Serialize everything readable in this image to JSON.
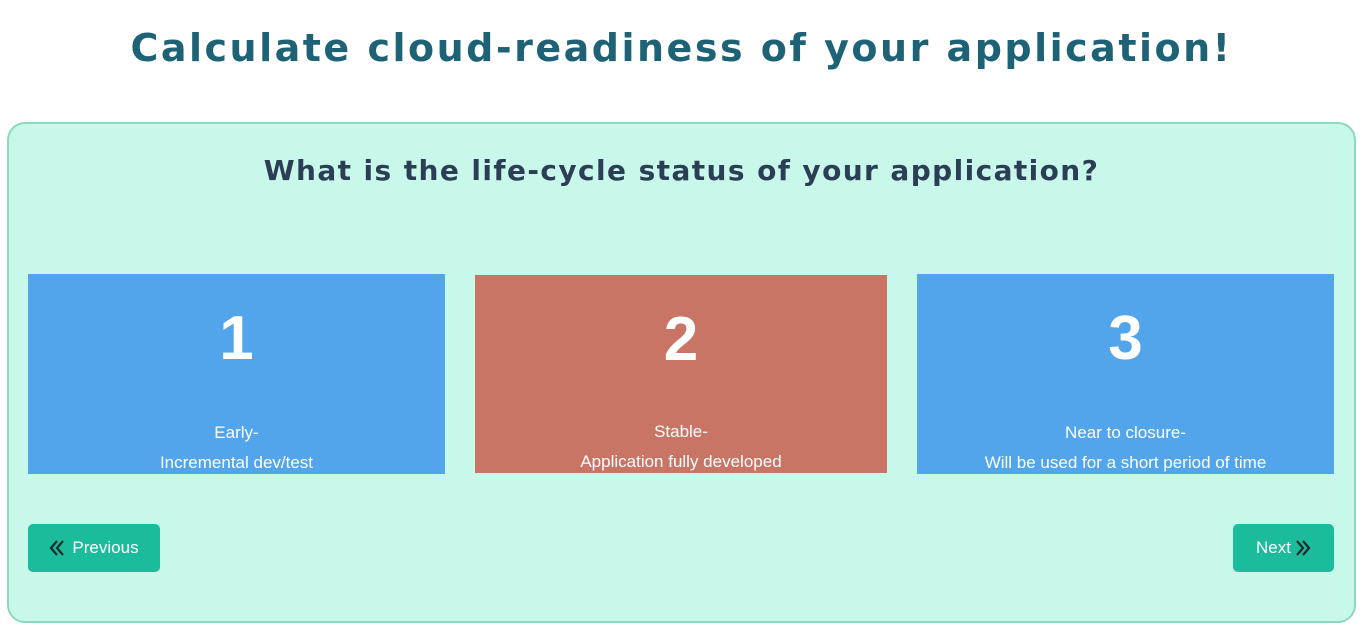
{
  "page": {
    "title": "Calculate cloud-readiness of your application!"
  },
  "quiz": {
    "question": "What is the life-cycle status of your application?",
    "options": [
      {
        "number": "1",
        "line1": "Early-",
        "line2": "Incremental dev/test",
        "selected": false
      },
      {
        "number": "2",
        "line1": "Stable-",
        "line2": "Application fully developed",
        "selected": true
      },
      {
        "number": "3",
        "line1": "Near to closure-",
        "line2": "Will be used for a short period of time",
        "selected": false
      }
    ]
  },
  "nav": {
    "previous_label": "Previous",
    "previous_icon": "double-chevron-left-icon",
    "next_label": "Next",
    "next_icon": "double-chevron-right-icon"
  },
  "colors": {
    "title": "#1d6275",
    "question": "#2c3e55",
    "panel_bg": "#c8f8e9",
    "option": "#52a5ea",
    "option_selected": "#c97566",
    "button": "#1abc9c"
  }
}
